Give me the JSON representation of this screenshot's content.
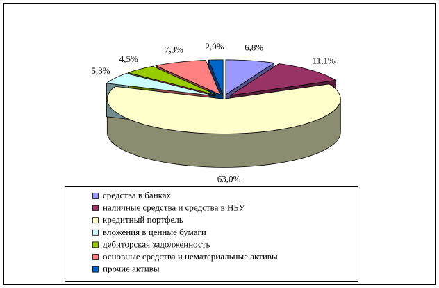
{
  "chart_data": {
    "type": "pie",
    "categories": [
      "средства в банках",
      "наличные средства и средства в НБУ",
      "кредитный портфель",
      "вложения в ценные бумаги",
      "дебиторская задолженность",
      "основные средства и нематериальные активы",
      "прочие активы"
    ],
    "values": [
      6.8,
      11.1,
      63.0,
      5.3,
      4.5,
      7.3,
      2.0
    ],
    "value_labels": [
      "6,8%",
      "11,1%",
      "63,0%",
      "5,3%",
      "4,5%",
      "7,3%",
      "2,0%"
    ],
    "colors": [
      "#9999ff",
      "#993366",
      "#ffffcc",
      "#ccffff",
      "#99cc00",
      "#ff8080",
      "#0066cc"
    ]
  }
}
